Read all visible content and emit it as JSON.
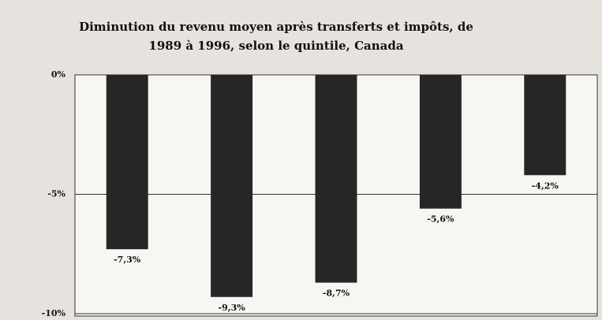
{
  "chart_data": {
    "type": "bar",
    "title": "Diminution du revenu moyen après transferts et impôts, de 1989 à 1996, selon le quintile, Canada",
    "categories": [
      null,
      null,
      null,
      null,
      null
    ],
    "values": [
      -7.3,
      -9.3,
      -8.7,
      -5.6,
      -4.2
    ],
    "value_labels": [
      "-7,3%",
      "-9,3%",
      "-8,7%",
      "-5,6%",
      "-4,2%"
    ],
    "color": "#262626",
    "ylim": [
      -10,
      0
    ],
    "yticks": [
      {
        "value": 0,
        "label": "0%"
      },
      {
        "value": -5,
        "label": "-5%"
      },
      {
        "value": -10,
        "label": "-10%"
      }
    ],
    "grid": true
  }
}
